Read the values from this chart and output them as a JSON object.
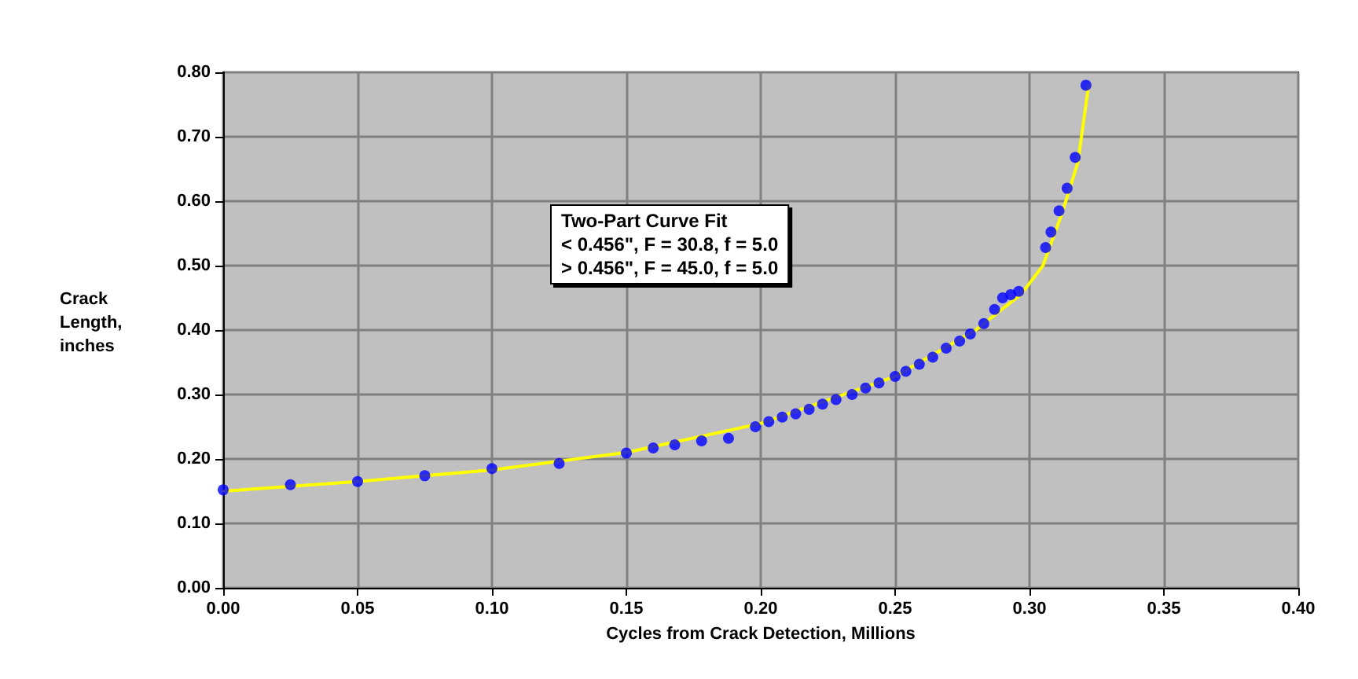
{
  "chart_data": {
    "type": "scatter",
    "xlabel": "Cycles from Crack Detection, Millions",
    "ylabel": "Crack\nLength,\ninches",
    "xlim": [
      0,
      0.4
    ],
    "ylim": [
      0,
      0.8
    ],
    "xticks": [
      {
        "value": 0,
        "label": "0.00"
      },
      {
        "value": 0.05,
        "label": "0.05"
      },
      {
        "value": 0.1,
        "label": "0.10"
      },
      {
        "value": 0.15,
        "label": "0.15"
      },
      {
        "value": 0.2,
        "label": "0.20"
      },
      {
        "value": 0.25,
        "label": "0.25"
      },
      {
        "value": 0.3,
        "label": "0.30"
      },
      {
        "value": 0.35,
        "label": "0.35"
      },
      {
        "value": 0.4,
        "label": "0.40"
      }
    ],
    "yticks": [
      {
        "value": 0,
        "label": "0.00"
      },
      {
        "value": 0.1,
        "label": "0.10"
      },
      {
        "value": 0.2,
        "label": "0.20"
      },
      {
        "value": 0.3,
        "label": "0.30"
      },
      {
        "value": 0.4,
        "label": "0.40"
      },
      {
        "value": 0.5,
        "label": "0.50"
      },
      {
        "value": 0.6,
        "label": "0.60"
      },
      {
        "value": 0.7,
        "label": "0.70"
      },
      {
        "value": 0.8,
        "label": "0.80"
      }
    ],
    "grid": true,
    "marker": "circle",
    "annotations": [
      "Two-Part Curve Fit\n< 0.456\", F = 30.8, f = 5.0\n> 0.456\", F = 45.0, f = 5.0"
    ],
    "series": [
      {
        "type": "line",
        "color": "#ffff00",
        "marker": "none",
        "x": [
          0,
          0.05,
          0.1,
          0.15,
          0.2,
          0.25,
          0.28,
          0.297,
          0.305,
          0.312,
          0.318,
          0.322
        ],
        "values": [
          0.15,
          0.165,
          0.183,
          0.21,
          0.255,
          0.328,
          0.4,
          0.456,
          0.5,
          0.58,
          0.66,
          0.78
        ]
      },
      {
        "color": "#0000ff",
        "x": [
          0,
          0.025,
          0.05,
          0.075,
          0.1,
          0.125,
          0.15,
          0.16,
          0.168,
          0.178,
          0.188,
          0.198,
          0.203,
          0.208,
          0.213,
          0.218,
          0.223,
          0.228,
          0.234,
          0.239,
          0.244,
          0.25,
          0.254,
          0.259,
          0.264,
          0.269,
          0.274,
          0.278,
          0.283,
          0.287,
          0.29,
          0.293,
          0.296,
          0.306,
          0.308,
          0.311,
          0.314,
          0.317,
          0.321
        ],
        "values": [
          0.152,
          0.16,
          0.165,
          0.174,
          0.185,
          0.193,
          0.209,
          0.217,
          0.222,
          0.228,
          0.232,
          0.25,
          0.258,
          0.265,
          0.27,
          0.277,
          0.285,
          0.292,
          0.3,
          0.31,
          0.318,
          0.328,
          0.336,
          0.347,
          0.358,
          0.372,
          0.383,
          0.394,
          0.41,
          0.432,
          0.45,
          0.455,
          0.46,
          0.528,
          0.552,
          0.585,
          0.62,
          0.668,
          0.78
        ]
      }
    ]
  }
}
